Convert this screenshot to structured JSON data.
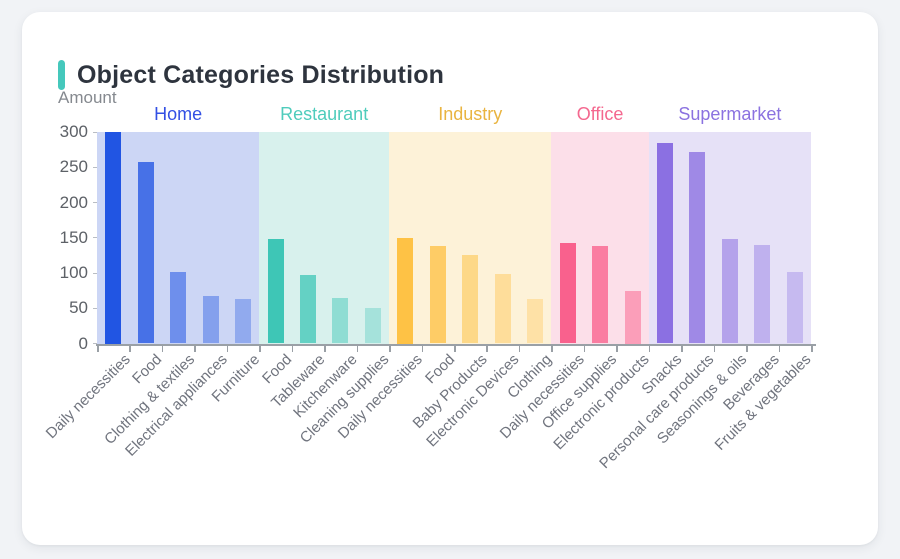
{
  "card": {
    "title": "Object Categories Distribution"
  },
  "chart_data": {
    "type": "bar",
    "title": "Object Categories Distribution",
    "xlabel": "",
    "ylabel": "Amount",
    "ylim": [
      0,
      300
    ],
    "yticks": [
      0,
      50,
      100,
      150,
      200,
      250,
      300
    ],
    "grid": false,
    "legend_position": "group labels above shaded bands",
    "groups": [
      {
        "name": "Home",
        "label_color": "#3350e4",
        "bar_color": "#2155e3",
        "band_color": "#ccd6f5",
        "categories": [
          "Daily necessities",
          "Food",
          "Clothing & textiles",
          "Electrical appliances",
          "Furniture"
        ],
        "values": [
          300,
          258,
          102,
          68,
          63
        ]
      },
      {
        "name": "Restaurant",
        "label_color": "#4fccbc",
        "bar_color": "#3ec6b6",
        "band_color": "#d8f1ed",
        "categories": [
          "Food",
          "Tableware",
          "Kitchenware",
          "Cleaning supplies"
        ],
        "values": [
          148,
          97,
          65,
          51
        ]
      },
      {
        "name": "Industry",
        "label_color": "#e9b440",
        "bar_color": "#fec245",
        "band_color": "#fdf2d8",
        "categories": [
          "Daily necessities",
          "Food",
          "Baby Products",
          "Electronic Devices",
          "Clothing"
        ],
        "values": [
          150,
          138,
          126,
          99,
          63
        ]
      },
      {
        "name": "Office",
        "label_color": "#f4688f",
        "bar_color": "#f9618d",
        "band_color": "#fcdfe9",
        "categories": [
          "Daily necessities",
          "Office supplies",
          "Electronic products"
        ],
        "values": [
          142,
          138,
          75
        ]
      },
      {
        "name": "Supermarket",
        "label_color": "#8b72e0",
        "bar_color": "#8b70e2",
        "band_color": "#e6e1f7",
        "categories": [
          "Snacks",
          "Personal care products",
          "Seasonings & oils",
          "Beverages",
          "Fruits & vegetables"
        ],
        "values": [
          285,
          271,
          148,
          140,
          101
        ]
      }
    ],
    "bar_alpha_by_count": {
      "3": [
        1,
        0.78,
        0.52
      ],
      "4": [
        1,
        0.75,
        0.48,
        0.33
      ],
      "5": [
        1,
        0.78,
        0.55,
        0.42,
        0.34
      ]
    }
  }
}
